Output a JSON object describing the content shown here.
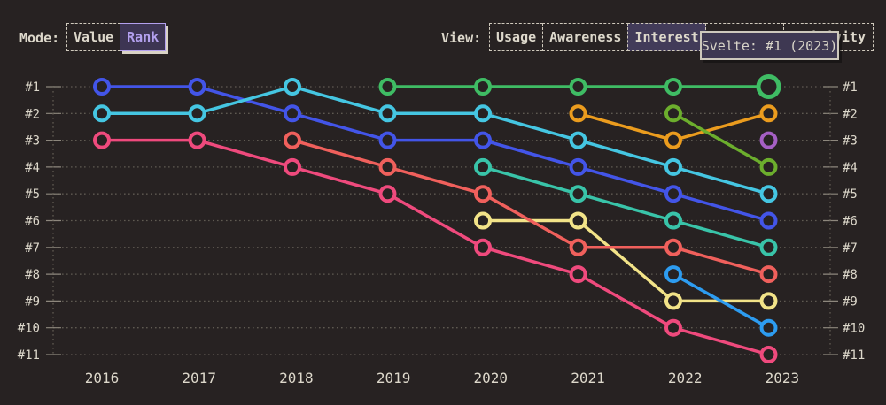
{
  "header": {
    "mode": {
      "label": "Mode:",
      "buttons": [
        {
          "label": "Value",
          "selected": false
        },
        {
          "label": "Rank",
          "selected": true
        }
      ]
    },
    "view": {
      "label": "View:",
      "buttons": [
        {
          "label": "Usage",
          "selected": false
        },
        {
          "label": "Awareness",
          "selected": false
        },
        {
          "label": "Interest",
          "selected": true
        },
        {
          "label": "",
          "selected": false
        },
        {
          "label": "Positivity",
          "selected": false
        }
      ]
    }
  },
  "tooltip": {
    "text": "Svelte: #1 (2023)"
  },
  "chart_data": {
    "type": "line",
    "subtype": "bump-rank",
    "title": "",
    "x": [
      2016,
      2017,
      2018,
      2019,
      2020,
      2021,
      2022,
      2023
    ],
    "x_labels": [
      "2016",
      "2017",
      "2018",
      "2019",
      "2020",
      "2021",
      "2022",
      "2023"
    ],
    "rank_labels": [
      "#1",
      "#2",
      "#3",
      "#4",
      "#5",
      "#6",
      "#7",
      "#8",
      "#9",
      "#10",
      "#11"
    ],
    "ylim": [
      1,
      11
    ],
    "y_axis_sides": [
      "left",
      "right"
    ],
    "grid": "dotted horizontal + vertical edge axes",
    "legend": "none",
    "series": [
      {
        "name": "blue",
        "color": "#4355e8",
        "values": [
          1,
          1,
          2,
          3,
          3,
          4,
          5,
          6
        ]
      },
      {
        "name": "cyan",
        "color": "#45c6e2",
        "values": [
          2,
          2,
          1,
          2,
          2,
          3,
          4,
          5
        ]
      },
      {
        "name": "rose",
        "color": "#ef4a7d",
        "values": [
          3,
          3,
          4,
          5,
          7,
          8,
          10,
          11
        ]
      },
      {
        "name": "teal",
        "color": "#39c4a9",
        "values": [
          null,
          null,
          null,
          null,
          4,
          5,
          6,
          7
        ]
      },
      {
        "name": "yellow",
        "color": "#f2e388",
        "values": [
          null,
          null,
          null,
          null,
          6,
          6,
          9,
          9
        ]
      },
      {
        "name": "coral",
        "color": "#f0605c",
        "values": [
          null,
          null,
          3,
          4,
          5,
          7,
          7,
          8
        ]
      },
      {
        "name": "orange",
        "color": "#eb9c1e",
        "values": [
          null,
          null,
          null,
          null,
          null,
          2,
          3,
          2
        ]
      },
      {
        "name": "lime",
        "color": "#6cae2d",
        "values": [
          null,
          null,
          null,
          null,
          null,
          null,
          2,
          4
        ]
      },
      {
        "name": "sky",
        "color": "#2d9cf0",
        "values": [
          null,
          null,
          null,
          null,
          null,
          null,
          8,
          10
        ]
      },
      {
        "name": "purple",
        "color": "#a55fc4",
        "values": [
          null,
          null,
          null,
          null,
          null,
          null,
          null,
          3
        ]
      },
      {
        "name": "Svelte",
        "color": "#3fbc64",
        "values": [
          null,
          null,
          null,
          1,
          1,
          1,
          1,
          1
        ],
        "highlight_last": true
      }
    ],
    "highlight": {
      "series": "Svelte",
      "year": 2023,
      "rank": 1
    },
    "colors": {
      "background": "#272222",
      "text": "#ddd8cb",
      "grid_dots": "#5f5a52",
      "ticks": "#8d877d"
    }
  }
}
